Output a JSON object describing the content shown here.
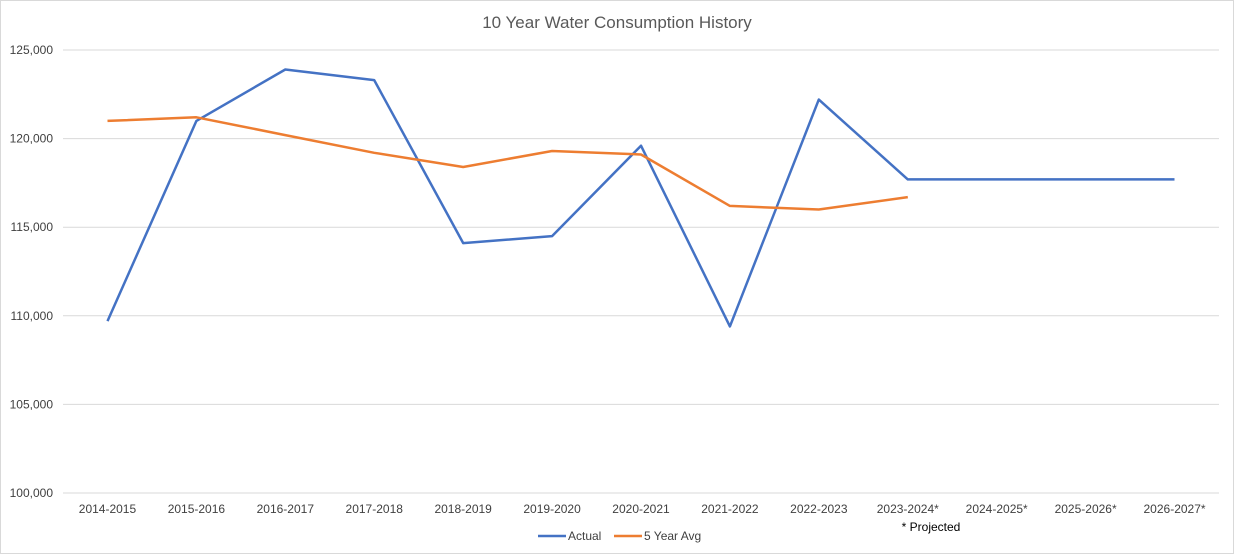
{
  "chart_data": {
    "type": "line",
    "title": "10 Year Water Consumption History",
    "xlabel": "",
    "ylabel": "",
    "categories": [
      "2014-2015",
      "2015-2016",
      "2016-2017",
      "2017-2018",
      "2018-2019",
      "2019-2020",
      "2020-2021",
      "2021-2022",
      "2022-2023",
      "2023-2024*",
      "2024-2025*",
      "2025-2026*",
      "2026-2027*"
    ],
    "ylim": [
      100000,
      125000
    ],
    "yticks": [
      "100,000",
      "105,000",
      "110,000",
      "115,000",
      "120,000",
      "125,000"
    ],
    "ytick_values": [
      100000,
      105000,
      110000,
      115000,
      120000,
      125000
    ],
    "grid": true,
    "legend_position": "bottom",
    "annotation": "* Projected",
    "series": [
      {
        "name": "Actual",
        "color": "#4472c4",
        "values": [
          109700,
          121000,
          123900,
          123300,
          114100,
          114500,
          119600,
          109400,
          122200,
          117700,
          117700,
          117700,
          117700
        ]
      },
      {
        "name": "5 Year Avg",
        "color": "#ed7d31",
        "values": [
          121000,
          121200,
          120200,
          119200,
          118400,
          119300,
          119100,
          116200,
          116000,
          116700,
          null,
          null,
          null
        ]
      }
    ]
  }
}
